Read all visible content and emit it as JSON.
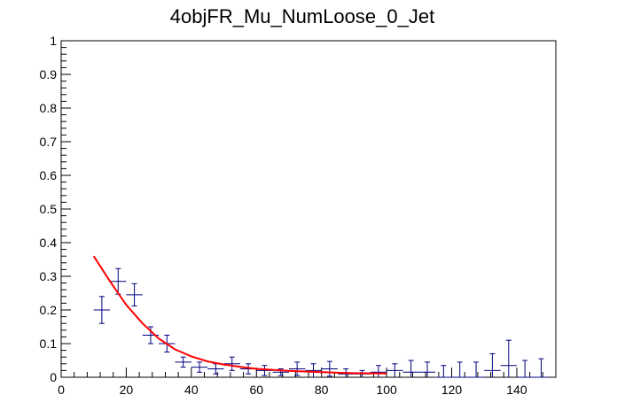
{
  "chart_data": {
    "type": "scatter",
    "title": "4objFR_Mu_NumLoose_0_Jet",
    "xlabel": "",
    "ylabel": "",
    "xlim": [
      0,
      152
    ],
    "ylim": [
      0,
      1
    ],
    "x_ticks": [
      "0",
      "20",
      "40",
      "60",
      "80",
      "100",
      "120",
      "140"
    ],
    "y_ticks": [
      "0",
      "0.1",
      "0.2",
      "0.3",
      "0.4",
      "0.5",
      "0.6",
      "0.7",
      "0.8",
      "0.9",
      "1"
    ],
    "grid": false,
    "colors": {
      "points": "#00007f",
      "fit": "#ff0000",
      "axes": "#000000"
    },
    "series": [
      {
        "type": "errorbar",
        "points": [
          {
            "x": 12.5,
            "y": 0.2,
            "xerr": 2.5,
            "yerr": 0.04
          },
          {
            "x": 17.5,
            "y": 0.285,
            "xerr": 2.5,
            "yerr": 0.038
          },
          {
            "x": 22.5,
            "y": 0.245,
            "xerr": 2.5,
            "yerr": 0.033
          },
          {
            "x": 27.5,
            "y": 0.125,
            "xerr": 2.5,
            "yerr": 0.025
          },
          {
            "x": 32.5,
            "y": 0.1,
            "xerr": 2.5,
            "yerr": 0.025
          },
          {
            "x": 37.5,
            "y": 0.045,
            "xerr": 2.5,
            "yerr": 0.015
          },
          {
            "x": 42.5,
            "y": 0.03,
            "xerr": 2.5,
            "yerr": 0.015
          },
          {
            "x": 47.5,
            "y": 0.025,
            "xerr": 2.5,
            "yerr": 0.015
          },
          {
            "x": 52.5,
            "y": 0.04,
            "xerr": 2.5,
            "yerr": 0.02
          },
          {
            "x": 57.5,
            "y": 0.025,
            "xerr": 2.5,
            "yerr": 0.015
          },
          {
            "x": 62.5,
            "y": 0.02,
            "xerr": 2.5,
            "yerr": 0.015
          },
          {
            "x": 67.5,
            "y": 0.015,
            "xerr": 2.5,
            "yerr": 0.01
          },
          {
            "x": 72.5,
            "y": 0.025,
            "xerr": 2.5,
            "yerr": 0.02
          },
          {
            "x": 77.5,
            "y": 0.02,
            "xerr": 2.5,
            "yerr": 0.02
          },
          {
            "x": 82.5,
            "y": 0.025,
            "xerr": 2.5,
            "yerr": 0.022
          },
          {
            "x": 87.5,
            "y": 0.01,
            "xerr": 2.5,
            "yerr": 0.015
          },
          {
            "x": 92.5,
            "y": 0.01,
            "xerr": 2.5,
            "yerr": 0.01
          },
          {
            "x": 97.5,
            "y": 0.015,
            "xerr": 2.5,
            "yerr": 0.02
          },
          {
            "x": 102.5,
            "y": 0.02,
            "xerr": 2.5,
            "yerr": 0.02
          },
          {
            "x": 107.5,
            "y": 0.015,
            "xerr": 2.5,
            "yerr": 0.035
          },
          {
            "x": 112.5,
            "y": 0.015,
            "xerr": 2.5,
            "yerr": 0.03
          },
          {
            "x": 117.5,
            "y": 0.0,
            "xerr": 2.5,
            "yerr": 0.035
          },
          {
            "x": 122.5,
            "y": 0.0,
            "xerr": 2.5,
            "yerr": 0.045
          },
          {
            "x": 127.5,
            "y": 0.0,
            "xerr": 2.5,
            "yerr": 0.045
          },
          {
            "x": 132.5,
            "y": 0.02,
            "xerr": 2.5,
            "yerr": 0.05
          },
          {
            "x": 137.5,
            "y": 0.035,
            "xerr": 2.5,
            "yerr": 0.075
          },
          {
            "x": 142.5,
            "y": 0.0,
            "xerr": 2.5,
            "yerr": 0.05
          },
          {
            "x": 147.5,
            "y": 0.0,
            "xerr": 2.5,
            "yerr": 0.055
          }
        ]
      },
      {
        "type": "line",
        "x": [
          10,
          15,
          20,
          25,
          30,
          35,
          40,
          45,
          50,
          55,
          60,
          70,
          80,
          90,
          100
        ],
        "y": [
          0.36,
          0.285,
          0.215,
          0.16,
          0.115,
          0.083,
          0.062,
          0.047,
          0.038,
          0.031,
          0.025,
          0.019,
          0.015,
          0.012,
          0.011
        ]
      }
    ]
  }
}
